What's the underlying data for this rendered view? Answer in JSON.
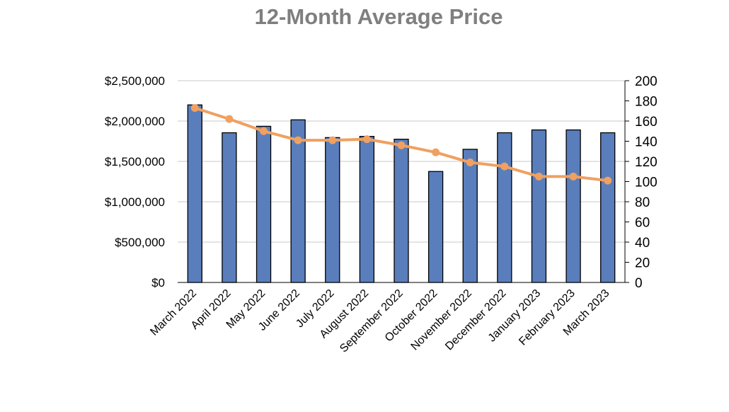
{
  "chart_data": {
    "type": "bar",
    "title": "12-Month Average Price",
    "categories": [
      "March 2022",
      "April 2022",
      "May 2022",
      "June 2022",
      "July 2022",
      "August 2022",
      "September 2022",
      "October 2022",
      "November 2022",
      "December 2022",
      "January 2023",
      "February 2023",
      "March 2023"
    ],
    "series": [
      {
        "type": "bar",
        "axis": "left",
        "color": "#5a7ebc",
        "values": [
          2200000,
          1855000,
          1935000,
          2015000,
          1795000,
          1810000,
          1775000,
          1375000,
          1650000,
          1855000,
          1890000,
          1890000,
          1855000
        ]
      },
      {
        "type": "line",
        "axis": "right",
        "color": "#f0a060",
        "values": [
          173,
          162,
          150,
          141,
          141,
          142,
          136,
          129,
          119,
          115,
          105,
          105,
          101
        ]
      }
    ],
    "ylim_left": [
      0,
      2500000
    ],
    "yticks_left": [
      "$0",
      "$500,000",
      "$1,000,000",
      "$1,500,000",
      "$2,000,000",
      "$2,500,000"
    ],
    "ylim_right": [
      0,
      200
    ],
    "yticks_right": [
      "0",
      "20",
      "40",
      "60",
      "80",
      "100",
      "120",
      "140",
      "160",
      "180",
      "200"
    ],
    "grid": true
  }
}
